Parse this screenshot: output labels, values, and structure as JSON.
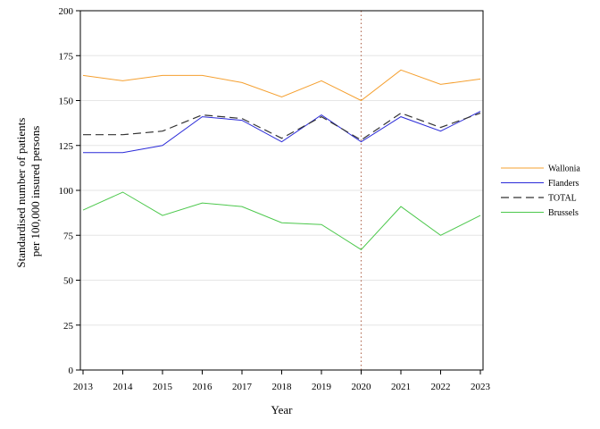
{
  "chart_data": {
    "type": "line",
    "xlabel": "Year",
    "ylabel_lines": [
      "Standardised number of patients",
      "per 100,000 insured persons"
    ],
    "x": [
      "2013",
      "2014",
      "2015",
      "2016",
      "2017",
      "2018",
      "2019",
      "2020",
      "2021",
      "2022",
      "2023"
    ],
    "ylim": [
      0,
      200
    ],
    "yticks": [
      "0",
      "25",
      "50",
      "75",
      "100",
      "125",
      "150",
      "175",
      "200"
    ],
    "grid": "horizontal",
    "legend_position": "right",
    "reference_line_x": "2020",
    "series": [
      {
        "name": "Wallonia",
        "color": "#f5a030",
        "dash": "solid",
        "values": [
          164,
          161,
          164,
          164,
          160,
          152,
          161,
          150,
          167,
          159,
          162
        ]
      },
      {
        "name": "Flanders",
        "color": "#2a2ad8",
        "dash": "solid",
        "values": [
          121,
          121,
          125,
          141,
          139,
          127,
          142,
          127,
          141,
          133,
          144
        ]
      },
      {
        "name": "TOTAL",
        "color": "#333333",
        "dash": "dashed",
        "values": [
          131,
          131,
          133,
          142,
          140,
          129,
          141,
          128,
          143,
          135,
          143
        ]
      },
      {
        "name": "Brussels",
        "color": "#4cc84c",
        "dash": "solid",
        "values": [
          89,
          99,
          86,
          93,
          91,
          82,
          81,
          67,
          91,
          75,
          86
        ]
      }
    ]
  }
}
